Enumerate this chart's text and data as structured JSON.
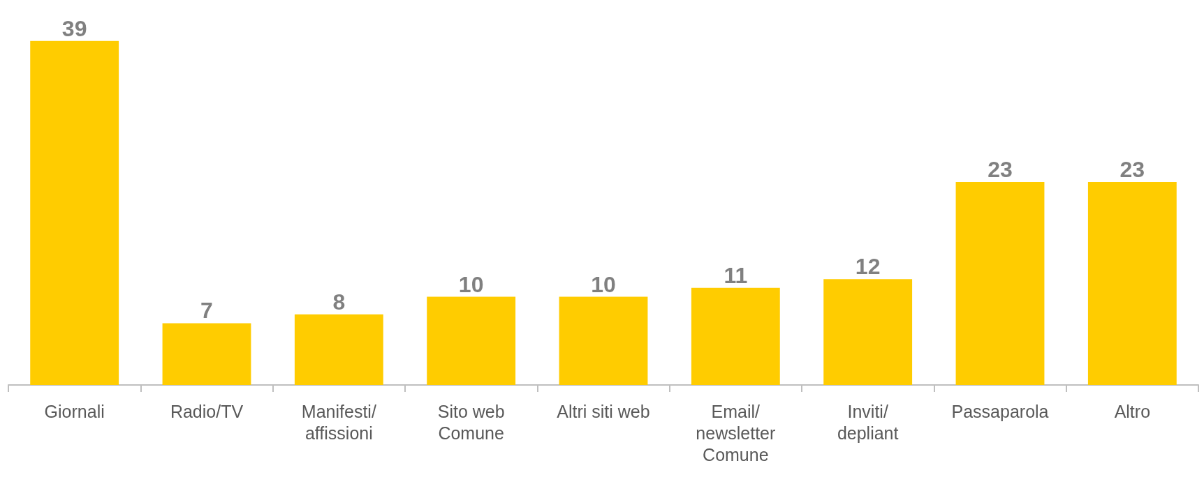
{
  "chart_data": {
    "type": "bar",
    "categories": [
      "Giornali",
      "Radio/TV",
      "Manifesti/\naffissioni",
      "Sito web\nComune",
      "Altri siti web",
      "Email/\nnewsletter\nComune",
      "Inviti/\ndepliant",
      "Passaparola",
      "Altro"
    ],
    "values": [
      39,
      7,
      8,
      10,
      10,
      11,
      12,
      23,
      23
    ],
    "color": "#ffcc00",
    "data_labels": true
  }
}
